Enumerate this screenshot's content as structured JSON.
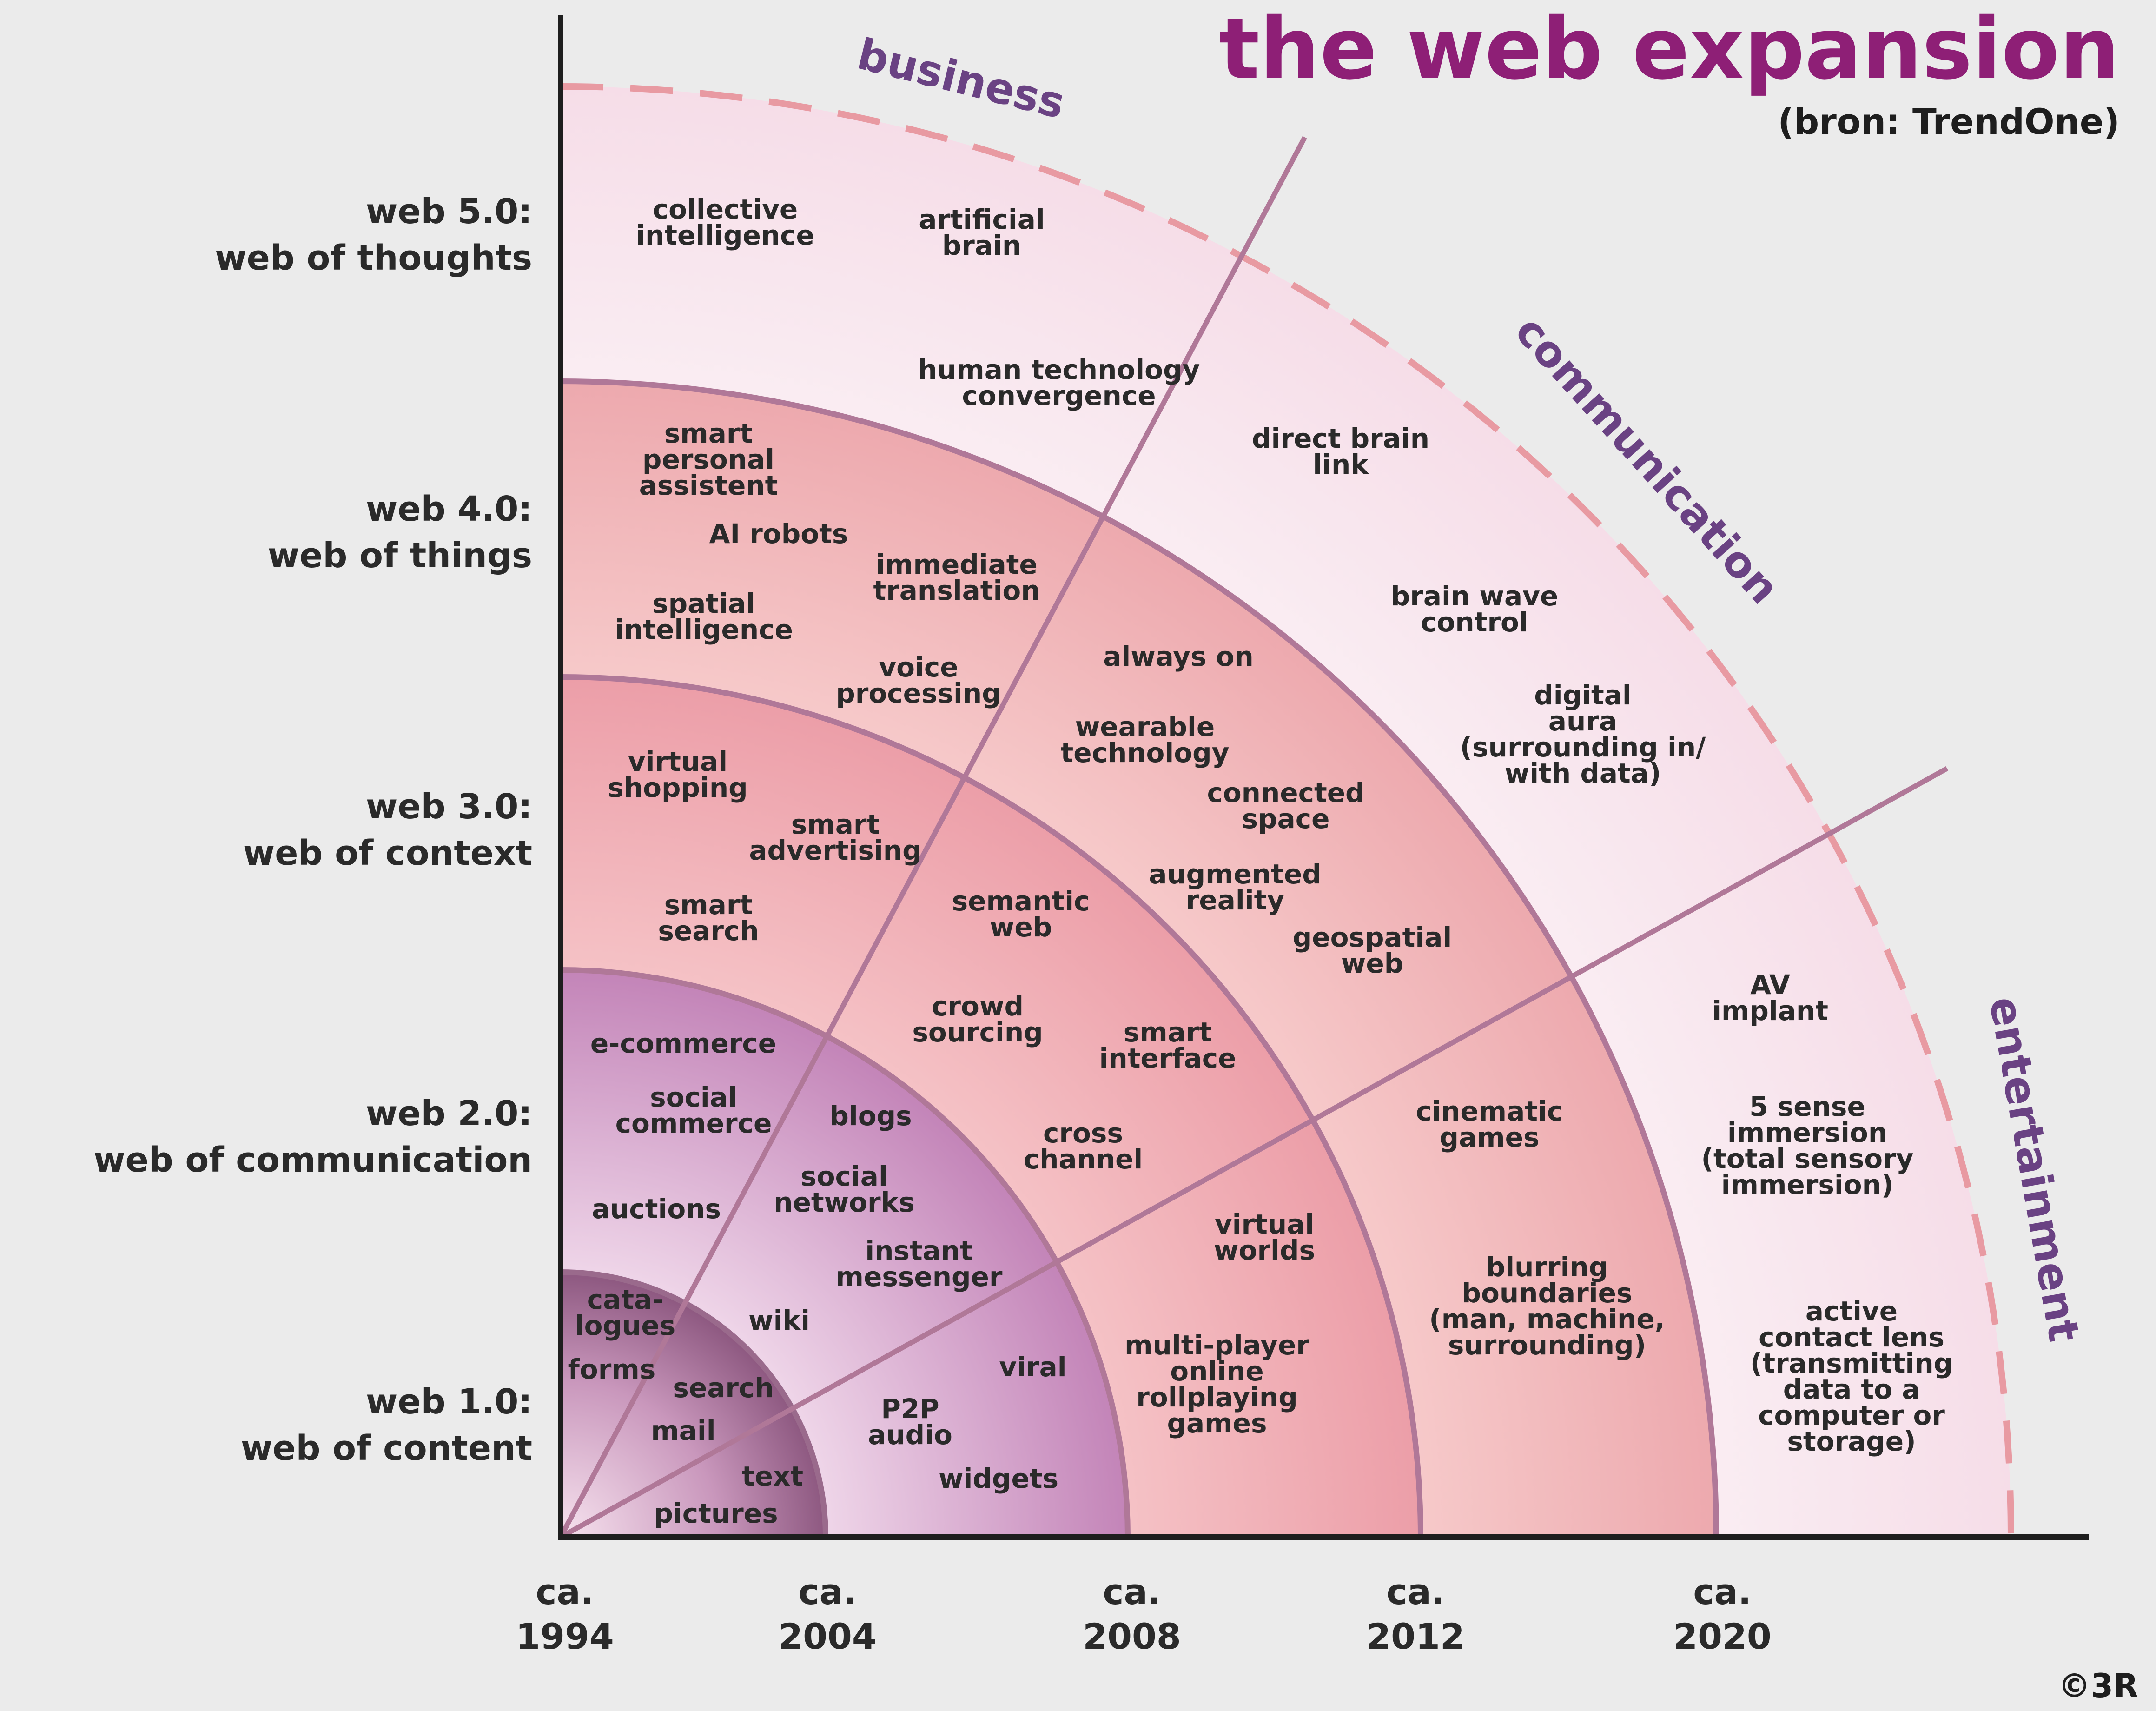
{
  "title": "the web expansion",
  "source": "(bron: TrendOne)",
  "copyright": "©3R",
  "colors": {
    "title": "#8e1f76",
    "sector_label": "#6a4283",
    "boundary_dash": "#e89aa2",
    "ring_outline": "#b07898"
  },
  "sectors": {
    "business": "business",
    "communication": "communication",
    "entertainment": "entertainment"
  },
  "levels": [
    {
      "line1": "web 5.0:",
      "line2": "web of thoughts"
    },
    {
      "line1": "web 4.0:",
      "line2": "web of things"
    },
    {
      "line1": "web 3.0:",
      "line2": "web of context"
    },
    {
      "line1": "web 2.0:",
      "line2": "web of communication"
    },
    {
      "line1": "web 1.0:",
      "line2": "web of content"
    }
  ],
  "years": [
    {
      "l1": "ca.",
      "l2": "1994"
    },
    {
      "l1": "ca.",
      "l2": "2004"
    },
    {
      "l1": "ca.",
      "l2": "2008"
    },
    {
      "l1": "ca.",
      "l2": "2012"
    },
    {
      "l1": "ca.",
      "l2": "2020"
    }
  ],
  "items": {
    "collective_intelligence": [
      "collective",
      "intelligence"
    ],
    "artificial_brain": [
      "artificial",
      "brain"
    ],
    "human_technology_convergence": [
      "human technology",
      "convergence"
    ],
    "direct_brain_link": [
      "direct brain",
      "link"
    ],
    "brain_wave_control": [
      "brain wave",
      "control"
    ],
    "digital_aura": [
      "digital",
      "aura",
      "(surrounding in/",
      "with data)"
    ],
    "av_implant": [
      "AV",
      "implant"
    ],
    "five_sense_immersion": [
      "5 sense",
      "immersion",
      "(total sensory",
      "immersion)"
    ],
    "active_contact_lens": [
      "active",
      "contact lens",
      "(transmitting",
      "data to a",
      "computer or",
      "storage)"
    ],
    "smart_personal_assistent": [
      "smart",
      "personal",
      "assistent"
    ],
    "ai_robots": [
      "AI robots"
    ],
    "immediate_translation": [
      "immediate",
      "translation"
    ],
    "spatial_intelligence": [
      "spatial",
      "intelligence"
    ],
    "voice_processing": [
      "voice",
      "processing"
    ],
    "always_on": [
      "always on"
    ],
    "wearable_technology": [
      "wearable",
      "technology"
    ],
    "connected_space": [
      "connected",
      "space"
    ],
    "augmented_reality": [
      "augmented",
      "reality"
    ],
    "geospatial_web": [
      "geospatial",
      "web"
    ],
    "cinematic_games": [
      "cinematic",
      "games"
    ],
    "blurring_boundaries": [
      "blurring",
      "boundaries",
      "(man, machine,",
      "surrounding)"
    ],
    "virtual_shopping": [
      "virtual",
      "shopping"
    ],
    "smart_advertising": [
      "smart",
      "advertising"
    ],
    "smart_search": [
      "smart",
      "search"
    ],
    "semantic_web": [
      "semantic",
      "web"
    ],
    "crowd_sourcing": [
      "crowd",
      "sourcing"
    ],
    "smart_interface": [
      "smart",
      "interface"
    ],
    "cross_channel": [
      "cross",
      "channel"
    ],
    "virtual_worlds": [
      "virtual",
      "worlds"
    ],
    "multi_player": [
      "multi-player",
      "online",
      "rollplaying",
      "games"
    ],
    "e_commerce": [
      "e-commerce"
    ],
    "social_commerce": [
      "social",
      "commerce"
    ],
    "blogs": [
      "blogs"
    ],
    "auctions": [
      "auctions"
    ],
    "social_networks": [
      "social",
      "networks"
    ],
    "instant_messenger": [
      "instant",
      "messenger"
    ],
    "wiki": [
      "wiki"
    ],
    "viral": [
      "viral"
    ],
    "p2p_audio": [
      "P2P",
      "audio"
    ],
    "widgets": [
      "widgets"
    ],
    "catalogues": [
      "cata-",
      "logues"
    ],
    "forms": [
      "forms"
    ],
    "search": [
      "search"
    ],
    "mail": [
      "mail"
    ],
    "text": [
      "text"
    ],
    "pictures": [
      "pictures"
    ]
  }
}
